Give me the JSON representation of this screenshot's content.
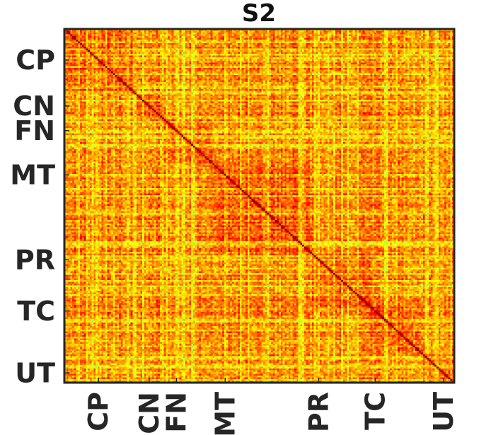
{
  "chart_data": {
    "type": "heatmap",
    "title": "S2",
    "xlabel": "",
    "ylabel": "",
    "n": 200,
    "colormap": "jet",
    "value_range": [
      -1,
      1
    ],
    "categories": [
      {
        "label": "CP",
        "start": 1,
        "end": 37
      },
      {
        "label": "CN",
        "start": 38,
        "end": 51
      },
      {
        "label": "FN",
        "start": 52,
        "end": 76
      },
      {
        "label": "MT",
        "start": 77,
        "end": 127
      },
      {
        "label": "PR",
        "start": 128,
        "end": 157
      },
      {
        "label": "TC",
        "start": 158,
        "end": 184
      },
      {
        "label": "UT",
        "start": 185,
        "end": 200
      }
    ],
    "tick_positions": [
      18,
      44,
      58,
      83,
      131,
      160,
      195
    ],
    "grid": false,
    "legend": "none",
    "diagonal_value": 1
  }
}
